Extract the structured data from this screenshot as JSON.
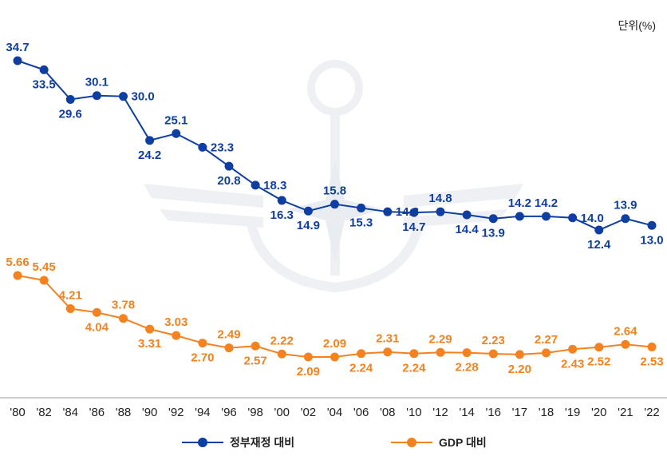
{
  "unit_label": "단위(%)",
  "chart_data": {
    "type": "line",
    "categories": [
      "'80",
      "'82",
      "'84",
      "'86",
      "'88",
      "'90",
      "'92",
      "'94",
      "'96",
      "'98",
      "'00",
      "'02",
      "'04",
      "'06",
      "'08",
      "'10",
      "'12",
      "'14",
      "'16",
      "'17",
      "'18",
      "'19",
      "'20",
      "'21",
      "'22"
    ],
    "series": [
      {
        "name": "정부재정 대비",
        "color": "#0e3ea1",
        "values": [
          34.7,
          33.5,
          29.6,
          30.1,
          30.0,
          24.2,
          25.1,
          23.3,
          20.8,
          18.3,
          16.3,
          14.9,
          15.8,
          15.3,
          14.8,
          14.7,
          14.8,
          14.4,
          13.9,
          14.2,
          14.2,
          14.0,
          12.4,
          13.9,
          13.0
        ],
        "labels": [
          "34.7",
          "33.5",
          "29.6",
          "30.1",
          "30.0",
          "24.2",
          "25.1",
          "23.3",
          "20.8",
          "18.3",
          "16.3",
          "14.9",
          "15.8",
          "15.3",
          "14.8",
          "14.7",
          "14.8",
          "14.4",
          "13.9",
          "14.2",
          "14.2",
          "14.0",
          "12.4",
          "13.9",
          "13.0"
        ],
        "label_pos": [
          "a",
          "b",
          "b",
          "a",
          "r",
          "b",
          "a",
          "r",
          "b",
          "r",
          "b",
          "b",
          "a",
          "b",
          "r",
          "b",
          "a",
          "b",
          "b",
          "a",
          "a",
          "r",
          "b",
          "a",
          "b"
        ]
      },
      {
        "name": "GDP 대비",
        "color": "#f5811f",
        "values": [
          5.66,
          5.45,
          4.21,
          4.04,
          3.78,
          3.31,
          3.03,
          2.7,
          2.49,
          2.57,
          2.22,
          2.09,
          2.09,
          2.24,
          2.31,
          2.24,
          2.29,
          2.28,
          2.23,
          2.2,
          2.27,
          2.43,
          2.52,
          2.64,
          2.53
        ],
        "labels": [
          "5.66",
          "5.45",
          "4.21",
          "4.04",
          "3.78",
          "3.31",
          "3.03",
          "2.70",
          "2.49",
          "2.57",
          "2.22",
          "2.09",
          "2.09",
          "2.24",
          "2.31",
          "2.24",
          "2.29",
          "2.28",
          "2.23",
          "2.20",
          "2.27",
          "2.43",
          "2.52",
          "2.64",
          "2.53"
        ],
        "label_pos": [
          "a",
          "a",
          "a",
          "b",
          "a",
          "b",
          "a",
          "b",
          "a",
          "b",
          "a",
          "b",
          "a",
          "b",
          "a",
          "b",
          "a",
          "b",
          "a",
          "b",
          "a",
          "b",
          "b",
          "a",
          "b"
        ]
      }
    ],
    "legend": "bottom-center",
    "grid": false
  },
  "axis_color": "#999999",
  "watermark_color": "#eef0f3"
}
